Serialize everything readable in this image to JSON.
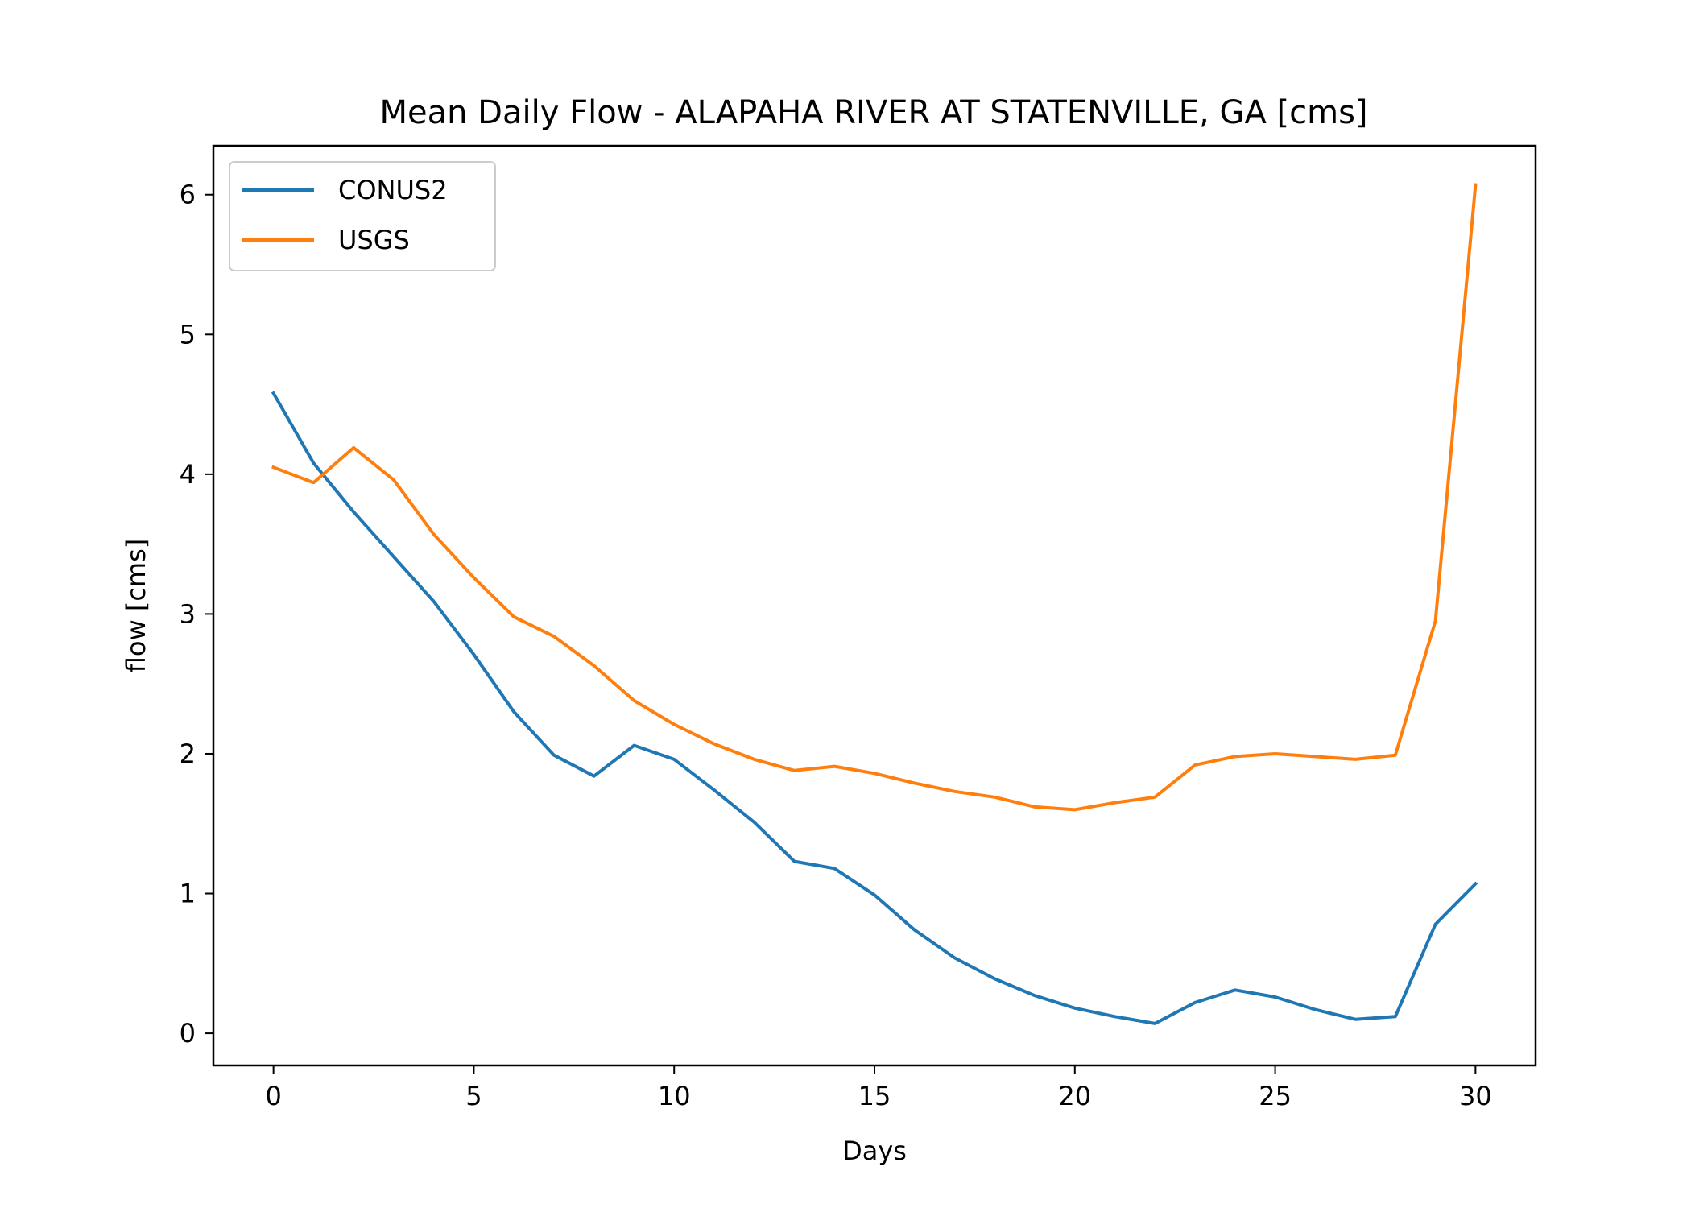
{
  "chart_data": {
    "type": "line",
    "title": "Mean Daily Flow - ALAPAHA RIVER AT STATENVILLE, GA [cms]",
    "xlabel": "Days",
    "ylabel": "flow [cms]",
    "xlim": [
      -1.5,
      31.5
    ],
    "ylim": [
      -0.23,
      6.35
    ],
    "xticks": [
      0,
      5,
      10,
      15,
      20,
      25,
      30
    ],
    "xtick_labels": [
      "0",
      "5",
      "10",
      "15",
      "20",
      "25",
      "30"
    ],
    "yticks": [
      0,
      1,
      2,
      3,
      4,
      5,
      6
    ],
    "ytick_labels": [
      "0",
      "1",
      "2",
      "3",
      "4",
      "5",
      "6"
    ],
    "grid": false,
    "legend_position": "upper left",
    "x": [
      0,
      1,
      2,
      3,
      4,
      5,
      6,
      7,
      8,
      9,
      10,
      11,
      12,
      13,
      14,
      15,
      16,
      17,
      18,
      19,
      20,
      21,
      22,
      23,
      24,
      25,
      26,
      27,
      28,
      29,
      30
    ],
    "series": [
      {
        "name": "CONUS2",
        "color": "#1f77b4",
        "values": [
          4.58,
          4.08,
          3.73,
          3.41,
          3.09,
          2.71,
          2.3,
          1.99,
          1.84,
          2.06,
          1.96,
          1.74,
          1.51,
          1.23,
          1.18,
          0.99,
          0.74,
          0.54,
          0.39,
          0.27,
          0.18,
          0.12,
          0.07,
          0.22,
          0.31,
          0.26,
          0.17,
          0.1,
          0.12,
          0.78,
          1.07
        ]
      },
      {
        "name": "USGS",
        "color": "#ff7f0e",
        "values": [
          4.05,
          3.94,
          4.19,
          3.96,
          3.57,
          3.26,
          2.98,
          2.84,
          2.63,
          2.38,
          2.21,
          2.07,
          1.96,
          1.88,
          1.91,
          1.86,
          1.79,
          1.73,
          1.69,
          1.62,
          1.6,
          1.65,
          1.69,
          1.92,
          1.98,
          2.0,
          1.98,
          1.96,
          1.99,
          2.95,
          6.07
        ]
      }
    ]
  }
}
